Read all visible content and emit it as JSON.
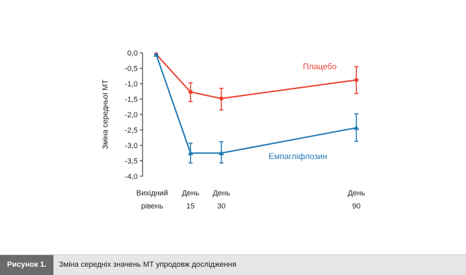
{
  "chart_data": {
    "type": "line",
    "ylabel": "Зміна середньої МТ",
    "ylim": [
      -4.0,
      0.0
    ],
    "yticks": [
      "0,0",
      "-0,5",
      "-1,0",
      "-1,5",
      "-2,0",
      "-2,5",
      "-3,0",
      "-3,5",
      "-4,0"
    ],
    "xticks": [
      {
        "x": 0,
        "lines": [
          "Вихідний",
          "рівень"
        ]
      },
      {
        "x": 15,
        "lines": [
          "День",
          "15"
        ]
      },
      {
        "x": 30,
        "lines": [
          "День",
          "30"
        ]
      },
      {
        "x": 90,
        "lines": [
          "День",
          "90"
        ]
      }
    ],
    "series": [
      {
        "name": "Плацебо",
        "color": "#e8412f",
        "marker": "circle",
        "points": [
          {
            "x": 0,
            "y": -0.05
          },
          {
            "x": 15,
            "y": -1.27,
            "err_low": -1.58,
            "err_high": -0.97
          },
          {
            "x": 30,
            "y": -1.48,
            "err_low": -1.85,
            "err_high": -1.15
          },
          {
            "x": 90,
            "y": -0.88,
            "err_low": -1.32,
            "err_high": -0.45
          }
        ]
      },
      {
        "name": "Емпагліфлозин",
        "color": "#1f78b4",
        "marker": "triangle",
        "points": [
          {
            "x": 0,
            "y": -0.06
          },
          {
            "x": 15,
            "y": -3.25,
            "err_low": -3.57,
            "err_high": -2.93
          },
          {
            "x": 30,
            "y": -3.25,
            "err_low": -3.57,
            "err_high": -2.88
          },
          {
            "x": 90,
            "y": -2.43,
            "err_low": -2.87,
            "err_high": -1.98
          }
        ]
      }
    ]
  },
  "caption": {
    "label": "Рисунок 1.",
    "text": "Зміна середніх значень МТ упродовж дослідження"
  }
}
